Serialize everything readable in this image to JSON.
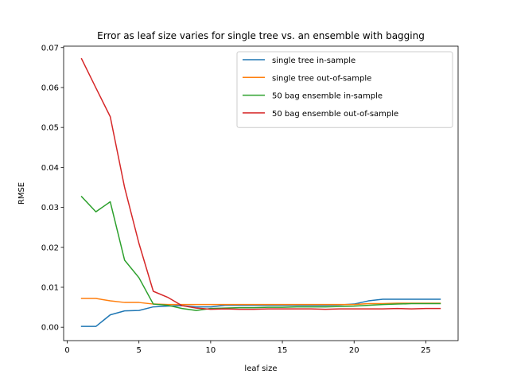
{
  "chart_data": {
    "type": "line",
    "title": "Error as leaf size varies for single tree vs. an ensemble with bagging",
    "xlabel": "leaf size",
    "ylabel": "RMSE",
    "xlim": [
      -0.25,
      27.25
    ],
    "ylim": [
      -0.00335,
      0.07035
    ],
    "xticks": [
      0,
      5,
      10,
      15,
      20,
      25
    ],
    "yticks": [
      0.0,
      0.01,
      0.02,
      0.03,
      0.04,
      0.05,
      0.06,
      0.07
    ],
    "ytick_labels": [
      "0.00",
      "0.01",
      "0.02",
      "0.03",
      "0.04",
      "0.05",
      "0.06",
      "0.07"
    ],
    "grid": false,
    "legend_position": "top-right",
    "x": [
      1,
      2,
      3,
      4,
      5,
      6,
      7,
      8,
      9,
      10,
      11,
      12,
      13,
      14,
      15,
      16,
      17,
      18,
      19,
      20,
      21,
      22,
      23,
      24,
      25,
      26
    ],
    "series": [
      {
        "name": "single tree in-sample",
        "color": "#1f77b4",
        "values": [
          0.0002,
          0.0002,
          0.0031,
          0.0041,
          0.0042,
          0.0051,
          0.0053,
          0.0054,
          0.0051,
          0.0051,
          0.0055,
          0.0055,
          0.0055,
          0.0055,
          0.0055,
          0.0055,
          0.0055,
          0.0055,
          0.0056,
          0.0058,
          0.0066,
          0.007,
          0.007,
          0.007,
          0.007,
          0.007
        ]
      },
      {
        "name": "single tree out-of-sample",
        "color": "#ff7f0e",
        "values": [
          0.0072,
          0.0072,
          0.0066,
          0.0062,
          0.0062,
          0.0058,
          0.0057,
          0.0057,
          0.0057,
          0.0057,
          0.0057,
          0.0057,
          0.0057,
          0.0057,
          0.0057,
          0.0057,
          0.0057,
          0.0057,
          0.0057,
          0.0057,
          0.0059,
          0.0059,
          0.006,
          0.006,
          0.006,
          0.006
        ]
      },
      {
        "name": "50 bag ensemble in-sample",
        "color": "#2ca02c",
        "values": [
          0.0327,
          0.0289,
          0.0314,
          0.0168,
          0.0124,
          0.0058,
          0.0055,
          0.0047,
          0.0042,
          0.0047,
          0.0048,
          0.0049,
          0.0049,
          0.005,
          0.005,
          0.0051,
          0.0051,
          0.0051,
          0.0052,
          0.0053,
          0.0055,
          0.0057,
          0.0058,
          0.0059,
          0.0059,
          0.0059
        ]
      },
      {
        "name": "50 bag ensemble out-of-sample",
        "color": "#d62728",
        "values": [
          0.0672,
          0.0599,
          0.0527,
          0.035,
          0.021,
          0.009,
          0.0075,
          0.0054,
          0.0048,
          0.0045,
          0.0046,
          0.0045,
          0.0045,
          0.0046,
          0.0046,
          0.0046,
          0.0046,
          0.0045,
          0.0046,
          0.0046,
          0.0046,
          0.0046,
          0.0047,
          0.0046,
          0.0047,
          0.0047
        ]
      }
    ]
  }
}
